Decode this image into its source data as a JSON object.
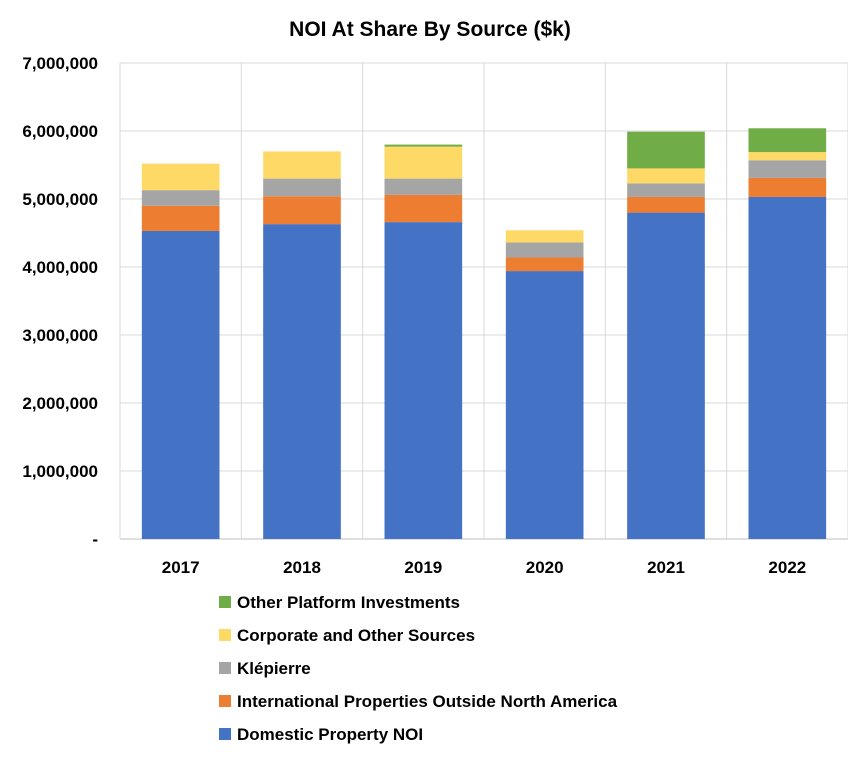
{
  "chart_data": {
    "type": "bar",
    "stacked": true,
    "title": "NOI At Share By Source ($k)",
    "xlabel": "",
    "ylabel": "",
    "categories": [
      "2017",
      "2018",
      "2019",
      "2020",
      "2021",
      "2022"
    ],
    "ylim": [
      0,
      7000000
    ],
    "yticks": [
      0,
      1000000,
      2000000,
      3000000,
      4000000,
      5000000,
      6000000,
      7000000
    ],
    "ytick_labels": [
      "-",
      "1,000,000",
      "2,000,000",
      "3,000,000",
      "4,000,000",
      "5,000,000",
      "6,000,000",
      "7,000,000"
    ],
    "grid": true,
    "legend_position": "bottom",
    "series": [
      {
        "name": "Domestic Property NOI",
        "color": "#4472C4",
        "values": [
          4530000,
          4630000,
          4660000,
          3940000,
          4800000,
          5030000
        ]
      },
      {
        "name": "International Properties Outside North America",
        "color": "#ED7D31",
        "values": [
          370000,
          410000,
          400000,
          200000,
          230000,
          280000
        ]
      },
      {
        "name": "Klépierre",
        "color": "#A5A5A5",
        "values": [
          230000,
          260000,
          240000,
          220000,
          200000,
          260000
        ]
      },
      {
        "name": "Corporate and Other Sources",
        "color": "#FFD966",
        "values": [
          390000,
          400000,
          470000,
          180000,
          220000,
          120000
        ]
      },
      {
        "name": "Other Platform Investments",
        "color": "#70AD47",
        "values": [
          0,
          0,
          30000,
          0,
          540000,
          350000
        ]
      }
    ],
    "legend_order": [
      "Other Platform Investments",
      "Corporate and Other Sources",
      "Klépierre",
      "International Properties Outside North America",
      "Domestic Property NOI"
    ]
  }
}
